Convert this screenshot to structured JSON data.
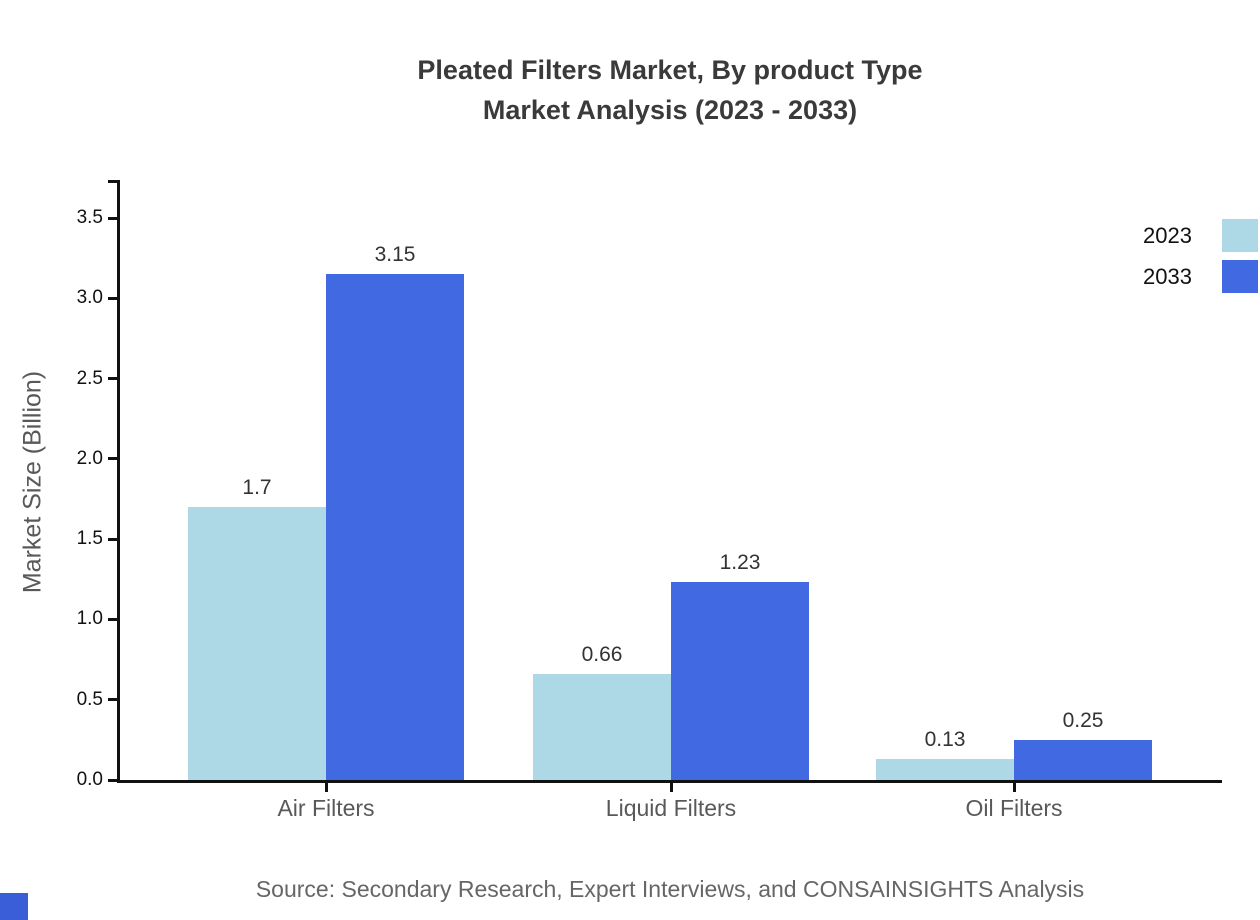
{
  "title": {
    "line1": "Pleated Filters Market, By product Type",
    "line2": "Market Analysis (2023 - 2033)"
  },
  "y_axis": {
    "label": "Market Size (Billion)",
    "tick_labels": [
      "0.0",
      "0.5",
      "1.0",
      "1.5",
      "2.0",
      "2.5",
      "3.0",
      "3.5"
    ]
  },
  "source": "Source: Secondary Research, Expert Interviews, and CONSAINSIGHTS Analysis",
  "chart_data": {
    "type": "bar",
    "title": "Pleated Filters Market, By product Type - Market Analysis (2023 - 2033)",
    "categories": [
      "Air Filters",
      "Liquid Filters",
      "Oil Filters"
    ],
    "series": [
      {
        "name": "2023",
        "color": "#ADD8E6",
        "values": [
          1.7,
          0.66,
          0.13
        ],
        "labels": [
          "1.7",
          "0.66",
          "0.13"
        ]
      },
      {
        "name": "2033",
        "color": "#4169E1",
        "values": [
          3.15,
          1.23,
          0.25
        ],
        "labels": [
          "3.15",
          "1.23",
          "0.25"
        ]
      }
    ],
    "xlabel": "",
    "ylabel": "Market Size (Billion)",
    "ylim": [
      0,
      3.5
    ],
    "ytick_step": 0.5,
    "grid": false,
    "legend_position": "upper right"
  },
  "colors": {
    "series_2023": "#ADD8E6",
    "series_2033": "#4169E1",
    "logo": "#3A5ED8"
  }
}
